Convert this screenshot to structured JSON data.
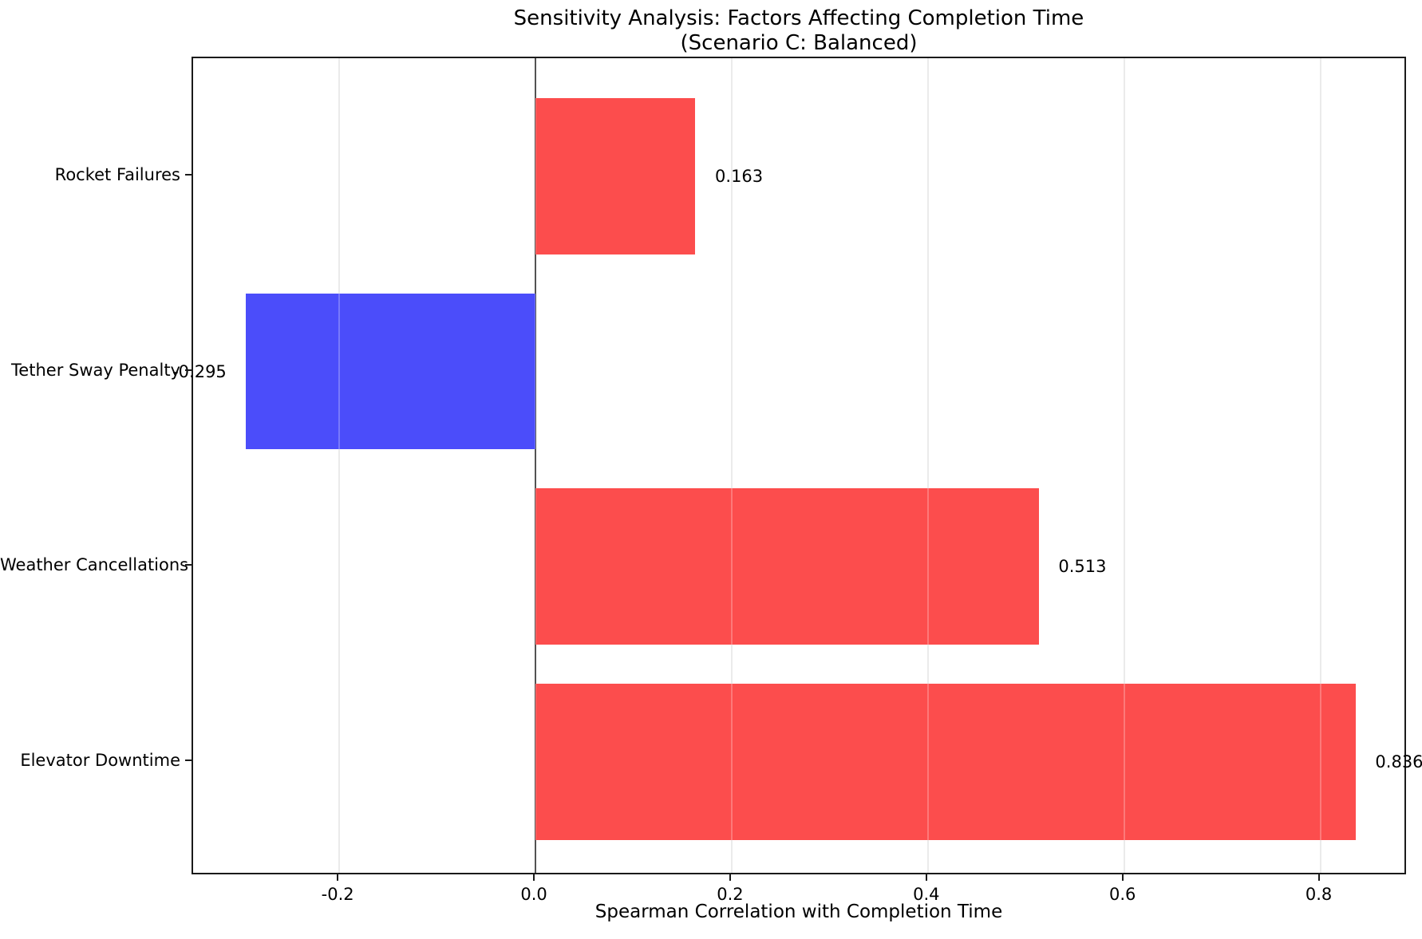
{
  "chart_data": {
    "type": "bar",
    "orientation": "horizontal",
    "title": "Sensitivity Analysis: Factors Affecting Completion Time",
    "subtitle": "(Scenario C: Balanced)",
    "xlabel": "Spearman Correlation with Completion Time",
    "ylabel": "",
    "categories": [
      "Rocket Failures",
      "Tether Sway Penalty",
      "Weather Cancellations",
      "Elevator Downtime"
    ],
    "values": [
      0.163,
      -0.295,
      0.513,
      0.836
    ],
    "value_labels": [
      "0.163",
      "-0.295",
      "0.513",
      "0.836"
    ],
    "xticks": [
      -0.2,
      0.0,
      0.2,
      0.4,
      0.6,
      0.8
    ],
    "xtick_labels": [
      "-0.2",
      "0.0",
      "0.2",
      "0.4",
      "0.6",
      "0.8"
    ],
    "xlim": [
      -0.349,
      0.889
    ],
    "ylim": [
      -0.584,
      3.604
    ],
    "bar_thickness": 0.8,
    "value_label_offset": 0.02,
    "grid": true,
    "zero_line": true,
    "legend": false,
    "colors": {
      "positive_bar": "#fc4d4d",
      "negative_bar": "#4b4dfa",
      "grid": "#e4e4e4",
      "grid_over_bar": "rgba(255,255,255,0.25)",
      "axis": "#1a1a1a",
      "text": "#000000"
    }
  }
}
